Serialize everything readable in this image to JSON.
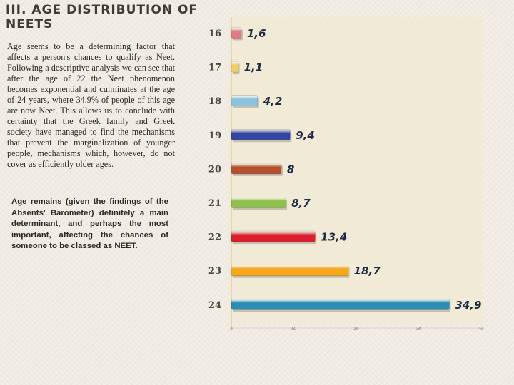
{
  "slide": {
    "title": "III. AGE DISTRIBUTION OF NEETS",
    "body": "Age seems to be a determining factor that affects a person's chances to qualify as Neet. Following a descriptive analysis we can see that after the age of 22 the Neet phenomenon becomes exponential and culminates at the age of 24 years, where 34.9% of people of this age are now Neet. This allows us to conclude with certainty that the Greek family and Greek society have managed to find the mechanisms that prevent the marginalization of younger people, mechanisms which, however, do not cover as efficiently older ages.",
    "note": "Age remains (given the findings of the Absents' Barometer) definitely a main determinant, and perhaps the most important, affecting the chances of someone to be classed as NEET."
  },
  "chart_data": {
    "type": "bar",
    "orientation": "horizontal",
    "categories": [
      "16",
      "17",
      "18",
      "19",
      "20",
      "21",
      "22",
      "23",
      "24"
    ],
    "values": [
      1.6,
      1.1,
      4.2,
      9.4,
      8,
      8.7,
      13.4,
      18.7,
      34.9
    ],
    "value_labels": [
      "1,6",
      "1,1",
      "4,2",
      "9,4",
      "8",
      "8,7",
      "13,4",
      "18,7",
      "34,9"
    ],
    "x_ticks": [
      "0",
      "10",
      "20",
      "30",
      "40"
    ],
    "xlim": [
      0,
      40
    ],
    "colors": [
      "#e07a88",
      "#f2cf66",
      "#8cc3dc",
      "#3346a0",
      "#b5502f",
      "#8fc24c",
      "#d9202c",
      "#f6a81b",
      "#2a8db5"
    ],
    "title": "",
    "xlabel": "",
    "ylabel": ""
  }
}
